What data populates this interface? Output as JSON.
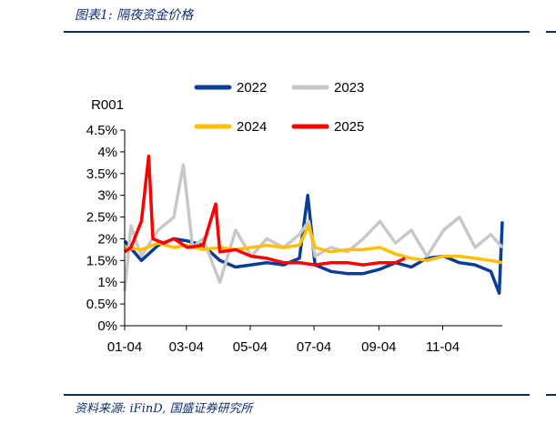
{
  "figure": {
    "title": "图表1:  隔夜资金价格",
    "source": "资料来源:  iFinD,  国盛证券研究所"
  },
  "colors": {
    "2022": "#0a3d96",
    "2023": "#c8c8c8",
    "2024": "#ffc000",
    "2025": "#ff0000",
    "accent": "#0b2e6b"
  },
  "chart_data": {
    "type": "line",
    "ylabel": "R001",
    "ylim": [
      0,
      4.5
    ],
    "yticks": [
      "0%",
      "0.5%",
      "1%",
      "1.5%",
      "2%",
      "2.5%",
      "3%",
      "3.5%",
      "4%",
      "4.5%"
    ],
    "xlim": [
      "01-04",
      "12-31"
    ],
    "xticks": [
      "01-04",
      "03-04",
      "05-04",
      "07-04",
      "09-04",
      "11-04"
    ],
    "grid": false,
    "legend": "top",
    "series": [
      {
        "name": "2022",
        "x": [
          "01-04",
          "01-20",
          "02-05",
          "02-20",
          "03-05",
          "03-20",
          "04-05",
          "04-20",
          "05-05",
          "05-20",
          "06-05",
          "06-20",
          "06-28",
          "07-05",
          "07-20",
          "08-05",
          "08-20",
          "09-05",
          "09-20",
          "10-05",
          "10-20",
          "11-05",
          "11-20",
          "12-05",
          "12-20",
          "12-28",
          "12-31"
        ],
        "values": [
          1.95,
          1.5,
          1.85,
          2.0,
          1.95,
          1.85,
          1.5,
          1.35,
          1.4,
          1.45,
          1.4,
          1.55,
          3.0,
          1.4,
          1.25,
          1.2,
          1.2,
          1.3,
          1.45,
          1.35,
          1.55,
          1.6,
          1.45,
          1.4,
          1.25,
          0.75,
          2.4
        ]
      },
      {
        "name": "2023",
        "x": [
          "01-04",
          "01-10",
          "01-20",
          "02-05",
          "02-20",
          "03-01",
          "03-10",
          "03-20",
          "04-05",
          "04-20",
          "05-05",
          "05-20",
          "06-05",
          "06-20",
          "06-29",
          "07-05",
          "07-20",
          "08-05",
          "08-20",
          "09-05",
          "09-20",
          "10-05",
          "10-20",
          "11-05",
          "11-20",
          "12-05",
          "12-20",
          "12-31"
        ],
        "values": [
          0.8,
          2.3,
          1.6,
          2.2,
          2.5,
          3.7,
          1.8,
          2.0,
          1.0,
          2.2,
          1.6,
          2.0,
          1.8,
          2.1,
          2.4,
          1.6,
          1.8,
          1.7,
          2.0,
          2.4,
          1.9,
          2.2,
          1.6,
          2.2,
          2.5,
          1.8,
          2.1,
          1.8
        ]
      },
      {
        "name": "2024",
        "x": [
          "01-04",
          "01-20",
          "02-05",
          "02-20",
          "03-05",
          "03-20",
          "04-05",
          "04-20",
          "05-05",
          "05-20",
          "06-05",
          "06-20",
          "06-29",
          "07-05",
          "07-20",
          "08-05",
          "08-20",
          "09-05",
          "09-20",
          "10-05",
          "10-20",
          "11-05",
          "11-20",
          "12-05",
          "12-20",
          "12-31"
        ],
        "values": [
          1.8,
          1.75,
          1.9,
          1.8,
          1.85,
          1.75,
          1.8,
          1.75,
          1.8,
          1.85,
          1.8,
          1.85,
          2.3,
          1.8,
          1.7,
          1.75,
          1.75,
          1.8,
          1.65,
          1.55,
          1.5,
          1.6,
          1.6,
          1.55,
          1.5,
          1.45
        ]
      },
      {
        "name": "2025",
        "x": [
          "01-04",
          "01-10",
          "01-20",
          "01-27",
          "01-31",
          "02-10",
          "02-20",
          "03-05",
          "03-20",
          "04-01",
          "04-05",
          "04-20",
          "05-05",
          "05-20",
          "06-05",
          "06-20",
          "07-05",
          "07-20",
          "08-05",
          "08-20",
          "09-05",
          "09-20",
          "09-29"
        ],
        "values": [
          1.7,
          1.8,
          2.4,
          3.9,
          2.0,
          1.9,
          2.0,
          1.8,
          1.85,
          2.8,
          1.7,
          1.75,
          1.6,
          1.55,
          1.45,
          1.45,
          1.4,
          1.45,
          1.45,
          1.4,
          1.45,
          1.45,
          1.55
        ]
      }
    ]
  }
}
